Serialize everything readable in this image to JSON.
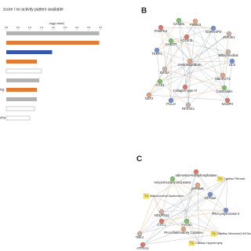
{
  "chart_data": {
    "type": "bar",
    "orientation": "horizontal",
    "title": "zcore / no activity pattern available",
    "x_label": "-log(p-value)",
    "categories": [
      null,
      null,
      null,
      null,
      null,
      null,
      "ng",
      null,
      null,
      "cho"
    ],
    "values": [
      3.95,
      3.95,
      1.95,
      1.3,
      1.5,
      1.4,
      1.3,
      1.3,
      1.2,
      1.0
    ],
    "colors": [
      "#b3b3b3",
      "#e27c34",
      "#3a56a8",
      "#e27c34",
      "#ffffff",
      "#b3b3b3",
      "#e27c34",
      "#b3b3b3",
      "#ffffff",
      "#ffffff"
    ],
    "xlim": [
      0,
      4
    ],
    "xticks": [
      {
        "value": 0,
        "label": "0.0"
      },
      {
        "value": 0.5,
        "label": "0.5"
      },
      {
        "value": 1,
        "label": "1.0"
      },
      {
        "value": 1.5,
        "label": "1.5"
      },
      {
        "value": 2,
        "label": "2.0"
      },
      {
        "value": 2.5,
        "label": "2.5"
      },
      {
        "value": 3,
        "label": "3.0"
      },
      {
        "value": 3.5,
        "label": "3.5"
      },
      {
        "value": 4,
        "label": "4.0"
      }
    ]
  },
  "panels": [
    {
      "letter": "B",
      "nodes": [
        "PABPC4",
        "CAND1",
        "PSMA3",
        "GORASP2",
        "ZNF3K1",
        "ACOX3L",
        "GADOT",
        "Immunoglobulin",
        "TERF1",
        "IDH3A",
        "Collagen type IV",
        "GYS1",
        "NSF2",
        "PCLO",
        "RPS4X1",
        "NADPH",
        "Calmodulin",
        "SMARCT1",
        "GLS",
        "Mitochondrial"
      ]
    },
    {
      "letter": "C",
      "nodes": [
        "adenosine-tetraphosphatase",
        "Hd-perinuclear inclusions",
        "ATP5ME",
        "ATPase",
        "NDUFB11",
        "CYC1",
        "F-Actin",
        "Pro-inflammatory Cytokine",
        "RNA polymerase II",
        "TBK1",
        "ATP2A1"
      ],
      "tox": [
        {
          "badge": "Tx",
          "label": "Cardiac Fibrosis"
        },
        {
          "badge": "Tx",
          "label": "Mitochondrial Dysfunction"
        },
        {
          "badge": "Tx",
          "label": "Cardiac Necrosis/Cell Death"
        },
        {
          "badge": "Tx",
          "label": "Cardiac Hypertrophy"
        }
      ]
    }
  ]
}
